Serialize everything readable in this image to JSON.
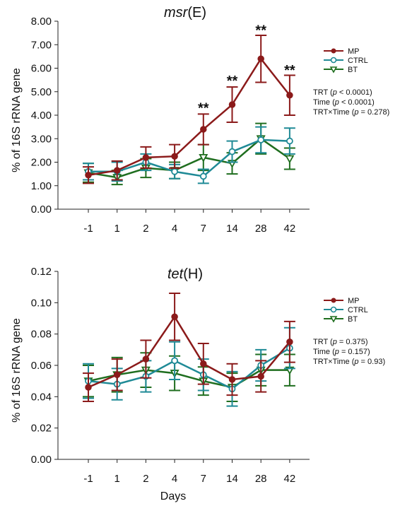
{
  "colors": {
    "MP": "#8b1a1a",
    "CTRL": "#1f8a96",
    "BT": "#1f6e1f"
  },
  "chart_data": [
    {
      "type": "line",
      "title_prefix": "msr",
      "title_suffix": "(E)",
      "ylabel": "% of 16S rRNA gene",
      "xlabel": "",
      "categories": [
        "-1",
        "1",
        "2",
        "4",
        "7",
        "14",
        "28",
        "42"
      ],
      "ylim": [
        0,
        8
      ],
      "yticks": [
        "0.00",
        "1.00",
        "2.00",
        "3.00",
        "4.00",
        "5.00",
        "6.00",
        "7.00",
        "8.00"
      ],
      "ytick_values": [
        0,
        1,
        2,
        3,
        4,
        5,
        6,
        7,
        8
      ],
      "series": [
        {
          "name": "MP",
          "values": [
            1.45,
            1.65,
            2.2,
            2.25,
            3.4,
            4.45,
            6.4,
            4.85
          ],
          "err": [
            0.35,
            0.4,
            0.45,
            0.5,
            0.65,
            0.75,
            1.0,
            0.85
          ]
        },
        {
          "name": "CTRL",
          "values": [
            1.6,
            1.6,
            2.0,
            1.6,
            1.4,
            2.45,
            2.95,
            2.9
          ],
          "err": [
            0.35,
            0.4,
            0.35,
            0.3,
            0.3,
            0.45,
            0.55,
            0.55
          ]
        },
        {
          "name": "BT",
          "values": [
            1.55,
            1.35,
            1.75,
            1.65,
            2.2,
            1.95,
            3.0,
            2.15
          ],
          "err": [
            0.4,
            0.3,
            0.4,
            0.35,
            0.55,
            0.45,
            0.65,
            0.45
          ]
        }
      ],
      "annotations": [
        {
          "label": "**",
          "category": "7",
          "y": 4.35
        },
        {
          "label": "**",
          "category": "14",
          "y": 5.5
        },
        {
          "label": "**",
          "category": "28",
          "y": 7.65
        },
        {
          "label": "**",
          "category": "42",
          "y": 5.95
        }
      ],
      "legend": [
        "MP",
        "CTRL",
        "BT"
      ],
      "stats": [
        {
          "pre": "TRT (",
          "p": "p",
          "post": " < 0.0001)"
        },
        {
          "pre": "Time (",
          "p": "p",
          "post": " < 0.0001)"
        },
        {
          "pre": "TRT×Time (",
          "p": "p",
          "post": " = 0.278)"
        }
      ]
    },
    {
      "type": "line",
      "title_prefix": "tet",
      "title_suffix": "(H)",
      "ylabel": "% of 16S rRNA gene",
      "xlabel": "Days",
      "categories": [
        "-1",
        "1",
        "2",
        "4",
        "7",
        "14",
        "28",
        "42"
      ],
      "ylim": [
        0,
        0.12
      ],
      "yticks": [
        "0.00",
        "0.02",
        "0.04",
        "0.06",
        "0.08",
        "0.10",
        "0.12"
      ],
      "ytick_values": [
        0,
        0.02,
        0.04,
        0.06,
        0.08,
        0.1,
        0.12
      ],
      "series": [
        {
          "name": "MP",
          "values": [
            0.046,
            0.054,
            0.064,
            0.091,
            0.061,
            0.051,
            0.053,
            0.075
          ],
          "err": [
            0.009,
            0.01,
            0.012,
            0.015,
            0.013,
            0.01,
            0.01,
            0.013
          ]
        },
        {
          "name": "CTRL",
          "values": [
            0.05,
            0.048,
            0.053,
            0.063,
            0.054,
            0.045,
            0.06,
            0.071
          ],
          "err": [
            0.011,
            0.01,
            0.01,
            0.012,
            0.01,
            0.011,
            0.01,
            0.013
          ]
        },
        {
          "name": "BT",
          "values": [
            0.05,
            0.054,
            0.057,
            0.055,
            0.05,
            0.046,
            0.057,
            0.057
          ],
          "err": [
            0.01,
            0.011,
            0.011,
            0.011,
            0.009,
            0.009,
            0.01,
            0.01
          ]
        }
      ],
      "annotations": [],
      "legend": [
        "MP",
        "CTRL",
        "BT"
      ],
      "stats": [
        {
          "pre": "TRT (",
          "p": "p",
          "post": " = 0.375)"
        },
        {
          "pre": "Time (",
          "p": "p",
          "post": " = 0.157)"
        },
        {
          "pre": "TRT×Time (",
          "p": "p",
          "post": " = 0.93)"
        }
      ]
    }
  ]
}
